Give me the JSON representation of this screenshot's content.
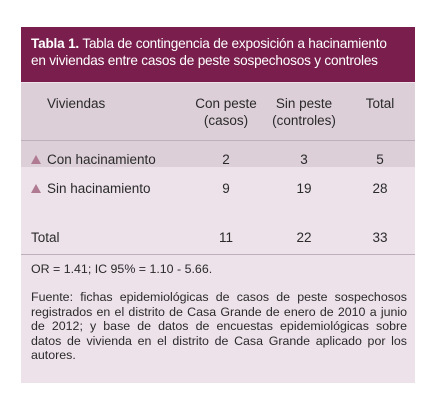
{
  "table": {
    "title_bold": "Tabla 1.",
    "title_rest": " Tabla de contingencia de exposición a hacinamiento en viviendas entre casos de peste sospechosos y controles",
    "columns": {
      "viviendas": "Viviendas",
      "con_peste_line1": "Con peste",
      "con_peste_line2": "(casos)",
      "sin_peste_line1": "Sin peste",
      "sin_peste_line2": "(controles)",
      "total": "Total"
    },
    "rows": [
      {
        "label": "Con hacinamiento",
        "con_peste": "2",
        "sin_peste": "3",
        "total": "5"
      },
      {
        "label": "Sin hacinamiento",
        "con_peste": "9",
        "sin_peste": "19",
        "total": "28"
      }
    ],
    "total_row": {
      "label": "Total",
      "con_peste": "11",
      "sin_peste": "22",
      "total": "33"
    },
    "odds_ratio": "OR = 1.41; IC 95% = 1.10 - 5.66.",
    "source": "Fuente: fichas epidemiológicas de casos de peste sospechosos registrados en el distrito de Casa Grande de enero de 2010 a junio de 2012; y base de datos de encuestas epidemiológicas sobre datos de vivienda en el distrito de Casa Grande aplicado por los autores."
  }
}
